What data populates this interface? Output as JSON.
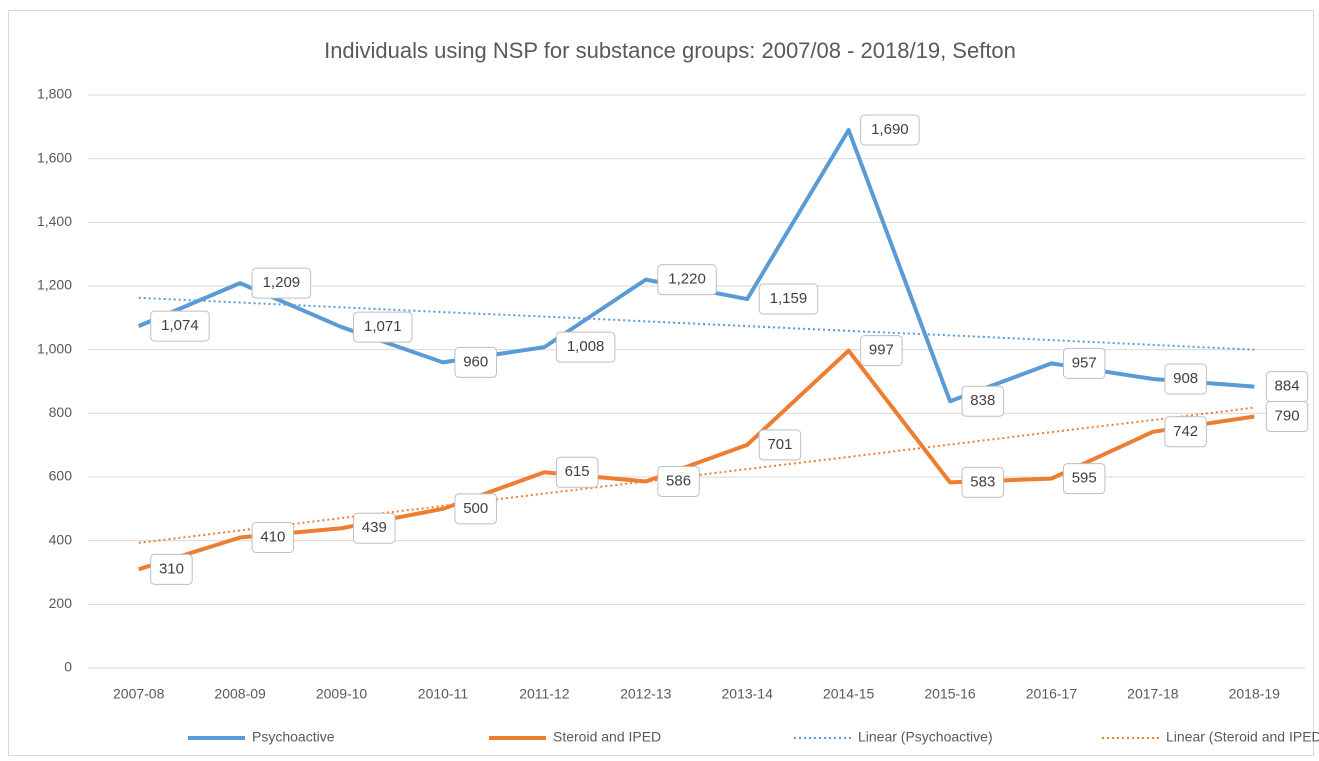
{
  "chart_data": {
    "type": "line",
    "title": "Individuals using NSP for substance groups: 2007/08 - 2018/19, Sefton",
    "categories": [
      "2007-08",
      "2008-09",
      "2009-10",
      "2010-11",
      "2011-12",
      "2012-13",
      "2013-14",
      "2014-15",
      "2015-16",
      "2016-17",
      "2017-18",
      "2018-19"
    ],
    "series": [
      {
        "name": "Psychoactive",
        "color": "#5b9bd5",
        "style": "solid",
        "values": [
          1074,
          1209,
          1071,
          960,
          1008,
          1220,
          1159,
          1690,
          838,
          957,
          908,
          884
        ],
        "value_labels": [
          "1,074",
          "1,209",
          "1,071",
          "960",
          "1,008",
          "1,220",
          "1,159",
          "1,690",
          "838",
          "957",
          "908",
          "884"
        ]
      },
      {
        "name": "Steroid and IPED",
        "color": "#ed7d31",
        "style": "solid",
        "values": [
          310,
          410,
          439,
          500,
          615,
          586,
          701,
          997,
          583,
          595,
          742,
          790
        ]
      },
      {
        "name": "Linear (Psychoactive)",
        "color": "#5b9bd5",
        "style": "dotted",
        "values": [
          1163,
          1148,
          1133,
          1118,
          1104,
          1089,
          1074,
          1059,
          1045,
          1030,
          1015,
          1000
        ]
      },
      {
        "name": "Linear (Steroid and IPED)",
        "color": "#ed7d31",
        "style": "dotted",
        "values": [
          393,
          432,
          471,
          509,
          548,
          586,
          625,
          663,
          702,
          741,
          779,
          818
        ]
      }
    ],
    "ylim": [
      0,
      1800
    ],
    "yticks": [
      0,
      200,
      400,
      600,
      800,
      {
        "value": 1000,
        "label": "1,000"
      },
      {
        "value": 1200,
        "label": "1,200"
      },
      {
        "value": 1400,
        "label": "1,400"
      },
      {
        "value": 1600,
        "label": "1,600"
      },
      {
        "value": 1800,
        "label": "1,800"
      }
    ],
    "grid": true,
    "legend": "bottom"
  }
}
